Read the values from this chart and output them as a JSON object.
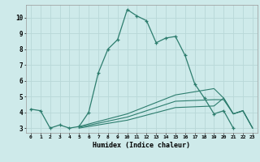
{
  "xlabel": "Humidex (Indice chaleur)",
  "bg_color": "#ceeaea",
  "grid_color": "#b8d8d8",
  "line_color": "#2d7d6e",
  "xlim": [
    -0.5,
    23.5
  ],
  "ylim": [
    2.7,
    10.8
  ],
  "yticks": [
    3,
    4,
    5,
    6,
    7,
    8,
    9,
    10
  ],
  "xticks": [
    0,
    1,
    2,
    3,
    4,
    5,
    6,
    7,
    8,
    9,
    10,
    11,
    12,
    13,
    14,
    15,
    16,
    17,
    18,
    19,
    20,
    21,
    22,
    23
  ],
  "series": [
    {
      "x": [
        0,
        1,
        2,
        3,
        4,
        5,
        6,
        7,
        8,
        9,
        10,
        11,
        12,
        13,
        14,
        15,
        16,
        17,
        18,
        19,
        20,
        21
      ],
      "y": [
        4.2,
        4.1,
        3.0,
        3.2,
        3.0,
        3.1,
        4.0,
        6.5,
        8.0,
        8.6,
        10.5,
        10.1,
        9.8,
        8.4,
        8.7,
        8.8,
        7.6,
        5.8,
        4.9,
        3.9,
        4.1,
        3.0
      ],
      "marker": true
    },
    {
      "x": [
        5,
        10,
        15,
        19,
        20,
        21,
        22,
        23
      ],
      "y": [
        3.1,
        3.9,
        5.1,
        5.5,
        4.9,
        3.9,
        4.1,
        3.0
      ],
      "marker": false
    },
    {
      "x": [
        5,
        10,
        15,
        19,
        20,
        21,
        22,
        23
      ],
      "y": [
        3.05,
        3.7,
        4.7,
        4.8,
        4.8,
        3.9,
        4.1,
        3.0
      ],
      "marker": false
    },
    {
      "x": [
        5,
        10,
        15,
        19,
        20,
        21,
        22,
        23
      ],
      "y": [
        3.0,
        3.5,
        4.3,
        4.4,
        4.9,
        3.9,
        4.1,
        3.0
      ],
      "marker": false
    }
  ]
}
